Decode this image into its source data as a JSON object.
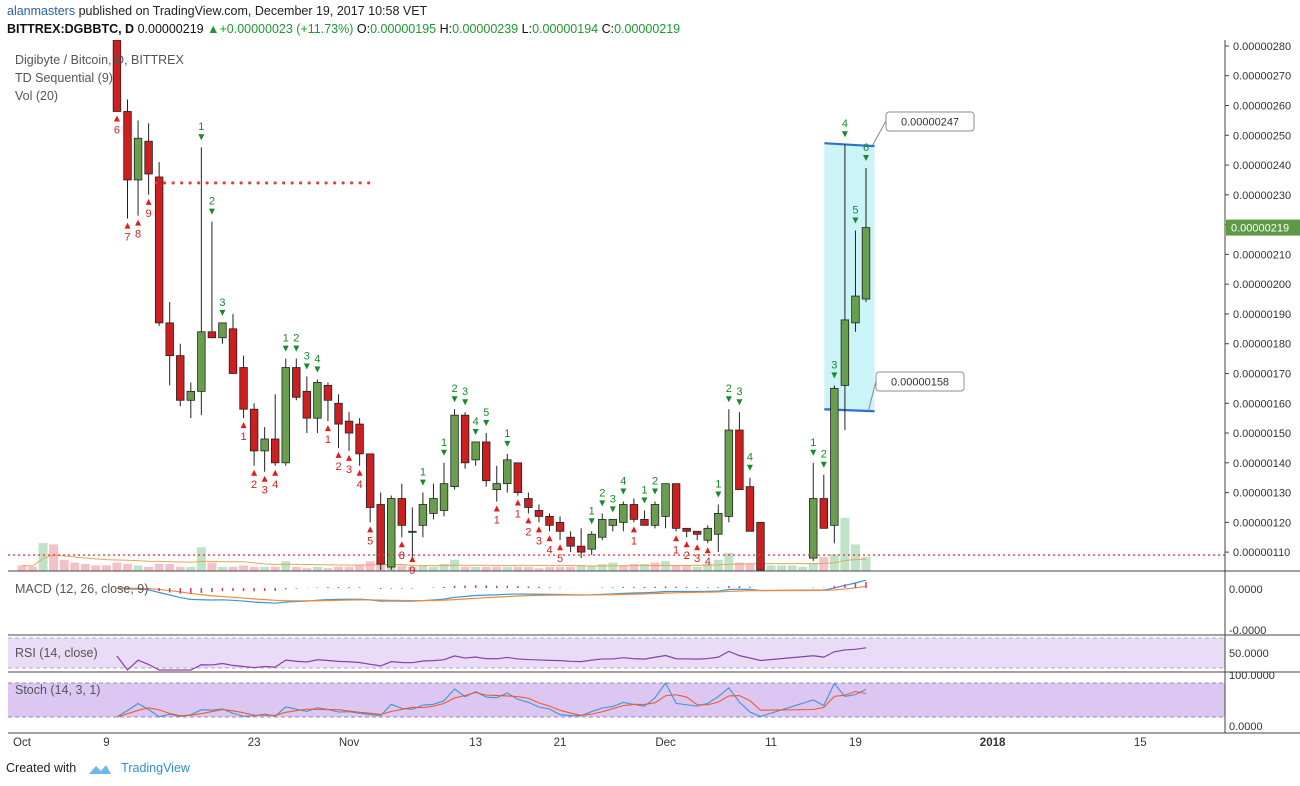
{
  "header": {
    "user": "alanmasters",
    "published": "published on TradingView.com, December 19, 2017 10:58 VET",
    "symbol": "BITTREX:DGBBTC, D",
    "last": "0.00000219",
    "change": "+0.00000023 (+11.73%)",
    "o_label": "O:",
    "o": "0.00000195",
    "h_label": "H:",
    "h": "0.00000239",
    "l_label": "L:",
    "l": "0.00000194",
    "c_label": "C:",
    "c": "0.00000219"
  },
  "footer": {
    "created_with": "Created with",
    "brand": "TradingView"
  },
  "legend": {
    "title": "Digibyte / Bitcoin, D, BITTREX",
    "td": "TD Sequential (9)",
    "vol": "Vol (20)",
    "macd": "MACD (12, 26, close, 9)",
    "rsi": "RSI (14, close)",
    "stoch": "Stoch (14, 3, 1)"
  },
  "colors": {
    "up": "#6a9e4f",
    "down": "#cc1f1f",
    "grid": "#e2eaf5",
    "annot": "#2d6fd1",
    "highlight": "#b8f0f4"
  },
  "chart_data": {
    "type": "candlestick",
    "y_axis": {
      "min": 1.04e-06,
      "max": 2.82e-06,
      "ticks": [
        "0.00000280",
        "0.00000270",
        "0.00000260",
        "0.00000250",
        "0.00000240",
        "0.00000230",
        "0.00000220",
        "0.00000210",
        "0.00000200",
        "0.00000190",
        "0.00000180",
        "0.00000170",
        "0.00000160",
        "0.00000150",
        "0.00000140",
        "0.00000130",
        "0.00000120",
        "0.00000110"
      ],
      "last_price_label": "0.00000219"
    },
    "x_axis": {
      "ticks": [
        {
          "label": "Oct",
          "day": 0
        },
        {
          "label": "9",
          "day": 8
        },
        {
          "label": "23",
          "day": 22
        },
        {
          "label": "Nov",
          "day": 31
        },
        {
          "label": "13",
          "day": 43
        },
        {
          "label": "21",
          "day": 51
        },
        {
          "label": "Dec",
          "day": 61
        },
        {
          "label": "11",
          "day": 71
        },
        {
          "label": "19",
          "day": 79
        },
        {
          "label": "2018",
          "day": 92
        },
        {
          "label": "15",
          "day": 106
        }
      ]
    },
    "candles": [
      {
        "d": 9,
        "o": 285,
        "h": 290,
        "l": 258,
        "c": 258
      },
      {
        "d": 10,
        "o": 258,
        "h": 262,
        "l": 222,
        "c": 235
      },
      {
        "d": 11,
        "o": 235,
        "h": 255,
        "l": 223,
        "c": 249
      },
      {
        "d": 12,
        "o": 248,
        "h": 254,
        "l": 230,
        "c": 237
      },
      {
        "d": 13,
        "o": 236,
        "h": 241,
        "l": 186,
        "c": 187
      },
      {
        "d": 14,
        "o": 187,
        "h": 194,
        "l": 166,
        "c": 176
      },
      {
        "d": 15,
        "o": 176,
        "h": 180,
        "l": 159,
        "c": 161
      },
      {
        "d": 16,
        "o": 161,
        "h": 167,
        "l": 155,
        "c": 164
      },
      {
        "d": 17,
        "o": 164,
        "h": 246,
        "l": 156,
        "c": 184
      },
      {
        "d": 18,
        "o": 184,
        "h": 221,
        "l": 182,
        "c": 182
      },
      {
        "d": 19,
        "o": 182,
        "h": 187,
        "l": 180,
        "c": 187
      },
      {
        "d": 20,
        "o": 185,
        "h": 190,
        "l": 170,
        "c": 170
      },
      {
        "d": 21,
        "o": 172,
        "h": 176,
        "l": 155,
        "c": 158
      },
      {
        "d": 22,
        "o": 158,
        "h": 160,
        "l": 139,
        "c": 144
      },
      {
        "d": 23,
        "o": 144,
        "h": 152,
        "l": 137,
        "c": 148
      },
      {
        "d": 24,
        "o": 148,
        "h": 163,
        "l": 139,
        "c": 140
      },
      {
        "d": 25,
        "o": 140,
        "h": 175,
        "l": 139,
        "c": 172
      },
      {
        "d": 26,
        "o": 172,
        "h": 175,
        "l": 161,
        "c": 162
      },
      {
        "d": 27,
        "o": 164,
        "h": 169,
        "l": 150,
        "c": 155
      },
      {
        "d": 28,
        "o": 155,
        "h": 168,
        "l": 150,
        "c": 167
      },
      {
        "d": 29,
        "o": 166,
        "h": 167,
        "l": 154,
        "c": 161
      },
      {
        "d": 30,
        "o": 160,
        "h": 163,
        "l": 145,
        "c": 153
      },
      {
        "d": 31,
        "o": 154,
        "h": 157,
        "l": 144,
        "c": 150
      },
      {
        "d": 32,
        "o": 153,
        "h": 155,
        "l": 139,
        "c": 143
      },
      {
        "d": 33,
        "o": 143,
        "h": 143,
        "l": 120,
        "c": 125
      },
      {
        "d": 34,
        "o": 126,
        "h": 130,
        "l": 103,
        "c": 106
      },
      {
        "d": 35,
        "o": 105,
        "h": 129,
        "l": 100,
        "c": 128
      },
      {
        "d": 36,
        "o": 128,
        "h": 133,
        "l": 115,
        "c": 119
      },
      {
        "d": 37,
        "o": 117,
        "h": 125,
        "l": 107,
        "c": 117
      },
      {
        "d": 38,
        "o": 119,
        "h": 130,
        "l": 115,
        "c": 126
      },
      {
        "d": 39,
        "o": 123,
        "h": 133,
        "l": 121,
        "c": 128
      },
      {
        "d": 40,
        "o": 124,
        "h": 140,
        "l": 122,
        "c": 133
      },
      {
        "d": 41,
        "o": 132,
        "h": 158,
        "l": 131,
        "c": 156
      },
      {
        "d": 42,
        "o": 156,
        "h": 157,
        "l": 138,
        "c": 140
      },
      {
        "d": 43,
        "o": 141,
        "h": 147,
        "l": 139,
        "c": 147
      },
      {
        "d": 44,
        "o": 147,
        "h": 150,
        "l": 132,
        "c": 134
      },
      {
        "d": 45,
        "o": 131,
        "h": 139,
        "l": 127,
        "c": 133
      },
      {
        "d": 46,
        "o": 133,
        "h": 143,
        "l": 130,
        "c": 141
      },
      {
        "d": 47,
        "o": 140,
        "h": 140,
        "l": 129,
        "c": 130
      },
      {
        "d": 48,
        "o": 128,
        "h": 130,
        "l": 123,
        "c": 125
      },
      {
        "d": 49,
        "o": 124,
        "h": 126,
        "l": 120,
        "c": 122
      },
      {
        "d": 50,
        "o": 122,
        "h": 123,
        "l": 117,
        "c": 119
      },
      {
        "d": 51,
        "o": 120,
        "h": 122,
        "l": 114,
        "c": 117
      },
      {
        "d": 52,
        "o": 115,
        "h": 117,
        "l": 110,
        "c": 112
      },
      {
        "d": 53,
        "o": 112,
        "h": 118,
        "l": 108,
        "c": 110
      },
      {
        "d": 54,
        "o": 111,
        "h": 117,
        "l": 109,
        "c": 116
      },
      {
        "d": 55,
        "o": 115,
        "h": 123,
        "l": 114,
        "c": 121
      },
      {
        "d": 56,
        "o": 119,
        "h": 121,
        "l": 117,
        "c": 121
      },
      {
        "d": 57,
        "o": 120,
        "h": 127,
        "l": 117,
        "c": 126
      },
      {
        "d": 58,
        "o": 126,
        "h": 128,
        "l": 120,
        "c": 121
      },
      {
        "d": 59,
        "o": 121,
        "h": 124,
        "l": 119,
        "c": 119
      },
      {
        "d": 60,
        "o": 119,
        "h": 127,
        "l": 118,
        "c": 126
      },
      {
        "d": 61,
        "o": 122,
        "h": 133,
        "l": 118,
        "c": 133
      },
      {
        "d": 62,
        "o": 133,
        "h": 133,
        "l": 117,
        "c": 118
      },
      {
        "d": 63,
        "o": 118,
        "h": 118,
        "l": 115,
        "c": 117
      },
      {
        "d": 64,
        "o": 117,
        "h": 117,
        "l": 114,
        "c": 116
      },
      {
        "d": 65,
        "o": 114,
        "h": 119,
        "l": 113,
        "c": 118
      },
      {
        "d": 66,
        "o": 116,
        "h": 126,
        "l": 110,
        "c": 123
      },
      {
        "d": 67,
        "o": 122,
        "h": 158,
        "l": 120,
        "c": 151
      },
      {
        "d": 68,
        "o": 151,
        "h": 157,
        "l": 131,
        "c": 131
      },
      {
        "d": 69,
        "o": 132,
        "h": 135,
        "l": 117,
        "c": 117
      },
      {
        "d": 70,
        "o": 120,
        "h": 120,
        "l": 98,
        "c": 99
      },
      {
        "d": 75,
        "o": 108,
        "h": 140,
        "l": 107,
        "c": 128
      },
      {
        "d": 76,
        "o": 128,
        "h": 136,
        "l": 118,
        "c": 118
      },
      {
        "d": 77,
        "o": 119,
        "h": 166,
        "l": 113,
        "c": 165
      },
      {
        "d": 78,
        "o": 166,
        "h": 247,
        "l": 151,
        "c": 188
      },
      {
        "d": 79,
        "o": 187,
        "h": 218,
        "l": 184,
        "c": 196
      },
      {
        "d": 80,
        "o": 195,
        "h": 239,
        "l": 194,
        "c": 219
      }
    ],
    "td_marks": [
      {
        "d": 9,
        "label": "6",
        "type": "sell"
      },
      {
        "d": 10,
        "label": "7",
        "type": "sell"
      },
      {
        "d": 11,
        "label": "8",
        "type": "sell"
      },
      {
        "d": 12,
        "label": "9",
        "type": "sell"
      },
      {
        "d": 17,
        "label": "1",
        "type": "buy"
      },
      {
        "d": 18,
        "label": "2",
        "type": "buy"
      },
      {
        "d": 19,
        "label": "3",
        "type": "buy"
      },
      {
        "d": 21,
        "label": "1",
        "type": "sell"
      },
      {
        "d": 22,
        "label": "2",
        "type": "sell"
      },
      {
        "d": 23,
        "label": "3",
        "type": "sell"
      },
      {
        "d": 24,
        "label": "4",
        "type": "sell"
      },
      {
        "d": 25,
        "label": "1",
        "type": "buy"
      },
      {
        "d": 26,
        "label": "2",
        "type": "buy"
      },
      {
        "d": 27,
        "label": "3",
        "type": "buy"
      },
      {
        "d": 28,
        "label": "4",
        "type": "buy"
      },
      {
        "d": 29,
        "label": "1",
        "type": "sell"
      },
      {
        "d": 30,
        "label": "2",
        "type": "sell"
      },
      {
        "d": 31,
        "label": "3",
        "type": "sell"
      },
      {
        "d": 32,
        "label": "4",
        "type": "sell"
      },
      {
        "d": 33,
        "label": "5",
        "type": "sell"
      },
      {
        "d": 36,
        "label": "8",
        "type": "sell"
      },
      {
        "d": 37,
        "label": "9",
        "type": "sell"
      },
      {
        "d": 38,
        "label": "1",
        "type": "buy"
      },
      {
        "d": 40,
        "label": "1",
        "type": "buy"
      },
      {
        "d": 41,
        "label": "2",
        "type": "buy"
      },
      {
        "d": 42,
        "label": "3",
        "type": "buy"
      },
      {
        "d": 43,
        "label": "4",
        "type": "buy"
      },
      {
        "d": 44,
        "label": "5",
        "type": "buy"
      },
      {
        "d": 45,
        "label": "1",
        "type": "sell"
      },
      {
        "d": 46,
        "label": "1",
        "type": "buy"
      },
      {
        "d": 47,
        "label": "1",
        "type": "sell"
      },
      {
        "d": 48,
        "label": "2",
        "type": "sell"
      },
      {
        "d": 49,
        "label": "3",
        "type": "sell"
      },
      {
        "d": 50,
        "label": "4",
        "type": "sell"
      },
      {
        "d": 51,
        "label": "5",
        "type": "sell"
      },
      {
        "d": 54,
        "label": "1",
        "type": "buy"
      },
      {
        "d": 55,
        "label": "2",
        "type": "buy"
      },
      {
        "d": 56,
        "label": "3",
        "type": "buy"
      },
      {
        "d": 57,
        "label": "4",
        "type": "buy"
      },
      {
        "d": 58,
        "label": "1",
        "type": "sell"
      },
      {
        "d": 59,
        "label": "1",
        "type": "buy"
      },
      {
        "d": 60,
        "label": "2",
        "type": "buy"
      },
      {
        "d": 62,
        "label": "1",
        "type": "sell"
      },
      {
        "d": 63,
        "label": "2",
        "type": "sell"
      },
      {
        "d": 64,
        "label": "3",
        "type": "sell"
      },
      {
        "d": 65,
        "label": "4",
        "type": "sell"
      },
      {
        "d": 66,
        "label": "1",
        "type": "buy"
      },
      {
        "d": 67,
        "label": "2",
        "type": "buy"
      },
      {
        "d": 68,
        "label": "3",
        "type": "buy"
      },
      {
        "d": 69,
        "label": "4",
        "type": "buy"
      },
      {
        "d": 75,
        "label": "1",
        "type": "buy"
      },
      {
        "d": 76,
        "label": "2",
        "type": "buy"
      },
      {
        "d": 77,
        "label": "3",
        "type": "buy"
      },
      {
        "d": 78,
        "label": "4",
        "type": "buy"
      },
      {
        "d": 79,
        "label": "5",
        "type": "buy"
      },
      {
        "d": 80,
        "label": "6",
        "type": "buy"
      }
    ],
    "volume": [
      {
        "d": 0,
        "v": 4,
        "t": "d"
      },
      {
        "d": 1,
        "v": 3,
        "t": "d"
      },
      {
        "d": 2,
        "v": 20,
        "t": "u"
      },
      {
        "d": 3,
        "v": 19,
        "t": "d"
      },
      {
        "d": 4,
        "v": 8,
        "t": "d"
      },
      {
        "d": 5,
        "v": 6,
        "t": "d"
      },
      {
        "d": 6,
        "v": 5,
        "t": "d"
      },
      {
        "d": 7,
        "v": 4,
        "t": "d"
      },
      {
        "d": 8,
        "v": 4,
        "t": "d"
      },
      {
        "d": 9,
        "v": 6,
        "t": "d"
      },
      {
        "d": 10,
        "v": 5,
        "t": "d"
      },
      {
        "d": 11,
        "v": 4,
        "t": "u"
      },
      {
        "d": 12,
        "v": 3,
        "t": "d"
      },
      {
        "d": 13,
        "v": 5,
        "t": "d"
      },
      {
        "d": 14,
        "v": 5,
        "t": "d"
      },
      {
        "d": 15,
        "v": 3,
        "t": "d"
      },
      {
        "d": 16,
        "v": 3,
        "t": "u"
      },
      {
        "d": 17,
        "v": 17,
        "t": "u"
      },
      {
        "d": 18,
        "v": 6,
        "t": "d"
      },
      {
        "d": 19,
        "v": 3,
        "t": "u"
      },
      {
        "d": 20,
        "v": 3,
        "t": "d"
      },
      {
        "d": 21,
        "v": 4,
        "t": "d"
      },
      {
        "d": 22,
        "v": 3,
        "t": "d"
      },
      {
        "d": 23,
        "v": 3,
        "t": "u"
      },
      {
        "d": 24,
        "v": 3,
        "t": "d"
      },
      {
        "d": 25,
        "v": 7,
        "t": "u"
      },
      {
        "d": 26,
        "v": 3,
        "t": "d"
      },
      {
        "d": 27,
        "v": 2,
        "t": "d"
      },
      {
        "d": 28,
        "v": 3,
        "t": "u"
      },
      {
        "d": 29,
        "v": 2,
        "t": "d"
      },
      {
        "d": 30,
        "v": 3,
        "t": "d"
      },
      {
        "d": 31,
        "v": 3,
        "t": "d"
      },
      {
        "d": 32,
        "v": 4,
        "t": "d"
      },
      {
        "d": 33,
        "v": 7,
        "t": "d"
      },
      {
        "d": 34,
        "v": 8,
        "t": "d"
      },
      {
        "d": 35,
        "v": 5,
        "t": "u"
      },
      {
        "d": 36,
        "v": 4,
        "t": "d"
      },
      {
        "d": 37,
        "v": 3,
        "t": "d"
      },
      {
        "d": 38,
        "v": 4,
        "t": "u"
      },
      {
        "d": 39,
        "v": 3,
        "t": "u"
      },
      {
        "d": 40,
        "v": 5,
        "t": "u"
      },
      {
        "d": 41,
        "v": 8,
        "t": "u"
      },
      {
        "d": 42,
        "v": 3,
        "t": "d"
      },
      {
        "d": 43,
        "v": 3,
        "t": "u"
      },
      {
        "d": 44,
        "v": 3,
        "t": "d"
      },
      {
        "d": 45,
        "v": 3,
        "t": "d"
      },
      {
        "d": 46,
        "v": 3,
        "t": "u"
      },
      {
        "d": 47,
        "v": 3,
        "t": "d"
      },
      {
        "d": 48,
        "v": 3,
        "t": "d"
      },
      {
        "d": 49,
        "v": 2,
        "t": "d"
      },
      {
        "d": 50,
        "v": 3,
        "t": "d"
      },
      {
        "d": 51,
        "v": 3,
        "t": "d"
      },
      {
        "d": 52,
        "v": 3,
        "t": "d"
      },
      {
        "d": 53,
        "v": 4,
        "t": "u"
      },
      {
        "d": 54,
        "v": 4,
        "t": "u"
      },
      {
        "d": 55,
        "v": 5,
        "t": "u"
      },
      {
        "d": 56,
        "v": 6,
        "t": "u"
      },
      {
        "d": 57,
        "v": 4,
        "t": "d"
      },
      {
        "d": 58,
        "v": 5,
        "t": "d"
      },
      {
        "d": 59,
        "v": 5,
        "t": "u"
      },
      {
        "d": 60,
        "v": 6,
        "t": "d"
      },
      {
        "d": 61,
        "v": 7,
        "t": "u"
      },
      {
        "d": 62,
        "v": 4,
        "t": "d"
      },
      {
        "d": 63,
        "v": 4,
        "t": "d"
      },
      {
        "d": 64,
        "v": 3,
        "t": "u"
      },
      {
        "d": 65,
        "v": 5,
        "t": "u"
      },
      {
        "d": 66,
        "v": 8,
        "t": "u"
      },
      {
        "d": 67,
        "v": 13,
        "t": "u"
      },
      {
        "d": 68,
        "v": 6,
        "t": "d"
      },
      {
        "d": 69,
        "v": 5,
        "t": "d"
      },
      {
        "d": 70,
        "v": 4,
        "t": "d"
      },
      {
        "d": 71,
        "v": 4,
        "t": "u"
      },
      {
        "d": 72,
        "v": 4,
        "t": "u"
      },
      {
        "d": 73,
        "v": 4,
        "t": "u"
      },
      {
        "d": 74,
        "v": 3,
        "t": "u"
      },
      {
        "d": 75,
        "v": 5,
        "t": "u"
      },
      {
        "d": 76,
        "v": 10,
        "t": "d"
      },
      {
        "d": 77,
        "v": 12,
        "t": "u"
      },
      {
        "d": 78,
        "v": 38,
        "t": "u"
      },
      {
        "d": 79,
        "v": 19,
        "t": "u"
      },
      {
        "d": 80,
        "v": 10,
        "t": "u"
      }
    ],
    "resistance_dotted": {
      "value": 234,
      "from_day": 13,
      "to_day": 33
    },
    "support_dotted": {
      "value": 109
    },
    "box": {
      "top": "0.00000247",
      "bottom": "0.00000158",
      "from_day": 77,
      "to_day": 81
    },
    "macd": {
      "ticks": [
        "0.0000",
        "-0.0000"
      ]
    },
    "rsi": {
      "ticks": [
        "50.0000"
      ]
    },
    "stoch": {
      "ticks": [
        "100.0000",
        "0.0000"
      ]
    }
  }
}
